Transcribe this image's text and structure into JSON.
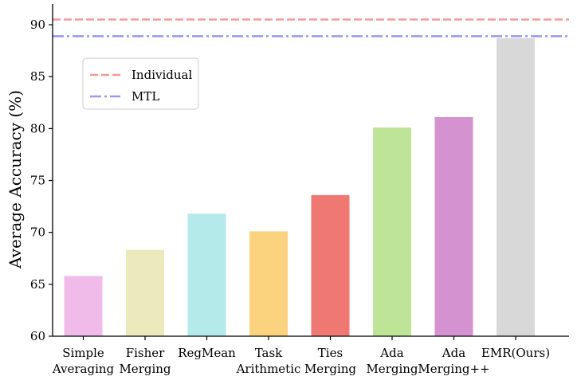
{
  "chart_data": {
    "type": "bar",
    "title": "",
    "xlabel": "",
    "ylabel": "Average Accuracy (%)",
    "ylim": [
      60,
      92
    ],
    "yticks": [
      60,
      65,
      70,
      75,
      80,
      85,
      90
    ],
    "categories": [
      [
        "Simple",
        "Averaging"
      ],
      [
        "Fisher",
        "Merging"
      ],
      [
        "RegMean"
      ],
      [
        "Task",
        "Arithmetic"
      ],
      [
        "Ties",
        "Merging"
      ],
      [
        "Ada",
        "Merging"
      ],
      [
        "Ada",
        "Merging++"
      ],
      [
        "EMR(Ours)"
      ]
    ],
    "values": [
      65.8,
      68.3,
      71.8,
      70.1,
      73.6,
      80.1,
      81.1,
      88.7
    ],
    "colors": [
      "#f1bbe9",
      "#ece9bc",
      "#b5eaea",
      "#fbd27e",
      "#ef7872",
      "#bee497",
      "#d592d1",
      "#d8d8d8"
    ],
    "reference_lines": [
      {
        "name": "Individual",
        "value": 90.5,
        "color": "#f49a9a",
        "style": "dashed"
      },
      {
        "name": "MTL",
        "value": 88.9,
        "color": "#9a9af2",
        "style": "dashdot"
      }
    ],
    "legend": {
      "placement": "upper-left"
    },
    "grid": false
  }
}
